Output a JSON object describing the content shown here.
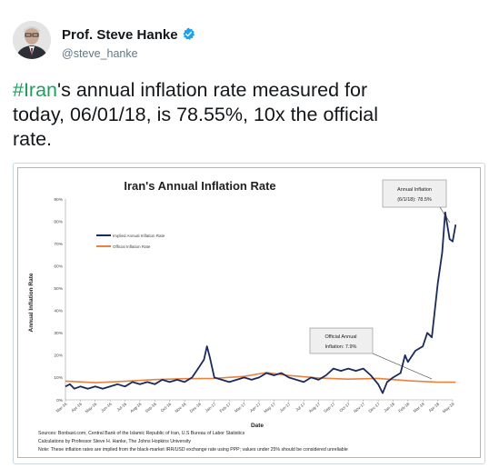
{
  "author": {
    "name": "Prof. Steve Hanke",
    "handle": "@steve_hanke",
    "verified_icon": "verified-badge-icon",
    "avatar_icon": "avatar-portrait"
  },
  "tweet": {
    "hashtag": "#Iran",
    "line1_rest": "'s annual inflation rate measured for",
    "line2": "today, 06/01/18, is 78.55%, 10x the official",
    "line3": "rate."
  },
  "colors": {
    "hashtag": "#19a25b",
    "implied_series": "#1a2a5e",
    "official_series": "#e8823f",
    "verified": "#1da1f2"
  },
  "chart_data": {
    "type": "line",
    "title": "Iran's Annual Inflation Rate",
    "xlabel": "Date",
    "ylabel": "Annual Inflation Rate",
    "ylim": [
      0,
      90
    ],
    "y_ticks": [
      "0%",
      "10%",
      "20%",
      "30%",
      "40%",
      "50%",
      "60%",
      "70%",
      "80%",
      "90%"
    ],
    "x_ticks": [
      "Mar-16",
      "Apr-16",
      "May-16",
      "Jun-16",
      "Jul-16",
      "Aug-16",
      "Sep-16",
      "Oct-16",
      "Nov-16",
      "Dec-16",
      "Jan-17",
      "Feb-17",
      "Mar-17",
      "Apr-17",
      "May-17",
      "Jun-17",
      "Jul-17",
      "Aug-17",
      "Sep-17",
      "Oct-17",
      "Nov-17",
      "Dec-17",
      "Jan-18",
      "Feb-18",
      "Mar-18",
      "Apr-18",
      "May-18"
    ],
    "grid": false,
    "legend_placement": "top-left",
    "series": [
      {
        "name": "Implied Annual Inflation Rate",
        "points": [
          [
            0,
            6
          ],
          [
            0.3,
            7
          ],
          [
            0.6,
            5
          ],
          [
            1,
            6
          ],
          [
            1.5,
            5
          ],
          [
            2,
            6
          ],
          [
            2.5,
            5
          ],
          [
            3,
            6
          ],
          [
            3.5,
            7
          ],
          [
            4,
            6
          ],
          [
            4.5,
            8
          ],
          [
            5,
            7
          ],
          [
            5.5,
            8
          ],
          [
            6,
            7
          ],
          [
            6.5,
            9
          ],
          [
            7,
            8
          ],
          [
            7.5,
            9
          ],
          [
            8,
            8
          ],
          [
            8.5,
            10
          ],
          [
            9,
            15
          ],
          [
            9.3,
            18
          ],
          [
            9.5,
            24
          ],
          [
            9.7,
            19
          ],
          [
            10,
            10
          ],
          [
            10.5,
            9
          ],
          [
            11,
            8
          ],
          [
            11.5,
            9
          ],
          [
            12,
            10
          ],
          [
            12.5,
            9
          ],
          [
            13,
            10
          ],
          [
            13.5,
            12
          ],
          [
            14,
            11
          ],
          [
            14.5,
            12
          ],
          [
            15,
            10
          ],
          [
            15.5,
            9
          ],
          [
            16,
            8
          ],
          [
            16.5,
            10
          ],
          [
            17,
            9
          ],
          [
            17.5,
            11
          ],
          [
            18,
            14
          ],
          [
            18.5,
            13
          ],
          [
            19,
            14
          ],
          [
            19.5,
            13
          ],
          [
            20,
            14
          ],
          [
            20.5,
            11
          ],
          [
            21,
            7
          ],
          [
            21.3,
            3
          ],
          [
            21.6,
            8
          ],
          [
            22,
            10
          ],
          [
            22.5,
            12
          ],
          [
            22.8,
            20
          ],
          [
            23,
            17
          ],
          [
            23.5,
            22
          ],
          [
            24,
            24
          ],
          [
            24.3,
            30
          ],
          [
            24.6,
            28
          ],
          [
            25,
            52
          ],
          [
            25.3,
            66
          ],
          [
            25.5,
            84
          ],
          [
            25.8,
            72
          ],
          [
            26,
            71
          ],
          [
            26.2,
            78.5
          ]
        ]
      },
      {
        "name": "Official Inflation Rate",
        "points": [
          [
            0,
            8.4
          ],
          [
            2,
            7.7
          ],
          [
            4,
            8.3
          ],
          [
            6,
            9.1
          ],
          [
            8,
            9.5
          ],
          [
            10,
            9.6
          ],
          [
            12,
            10.5
          ],
          [
            13.5,
            12.2
          ],
          [
            15,
            10.9
          ],
          [
            17,
            9.8
          ],
          [
            19,
            9.3
          ],
          [
            21,
            9.6
          ],
          [
            23,
            8.6
          ],
          [
            25,
            7.9
          ],
          [
            26.2,
            7.9
          ]
        ]
      }
    ],
    "annotations": [
      {
        "title": "Annual Inflation",
        "text": "(6/1/18): 78.5%"
      },
      {
        "title": "Official Annual",
        "text": "Inflation: 7.9%"
      }
    ],
    "sources": [
      "Sources: Bonbast.com, Central Bank of the Islamic Republic of Iran, U.S Bureau of Labor Statistics",
      "Calculations by Professor Steve H. Hanke, The Johns Hopkins University",
      "Note: These inflation rates are implied from the black-market IRR/USD exchange rate using PPP; values under 25% should be considered unreliable"
    ]
  }
}
